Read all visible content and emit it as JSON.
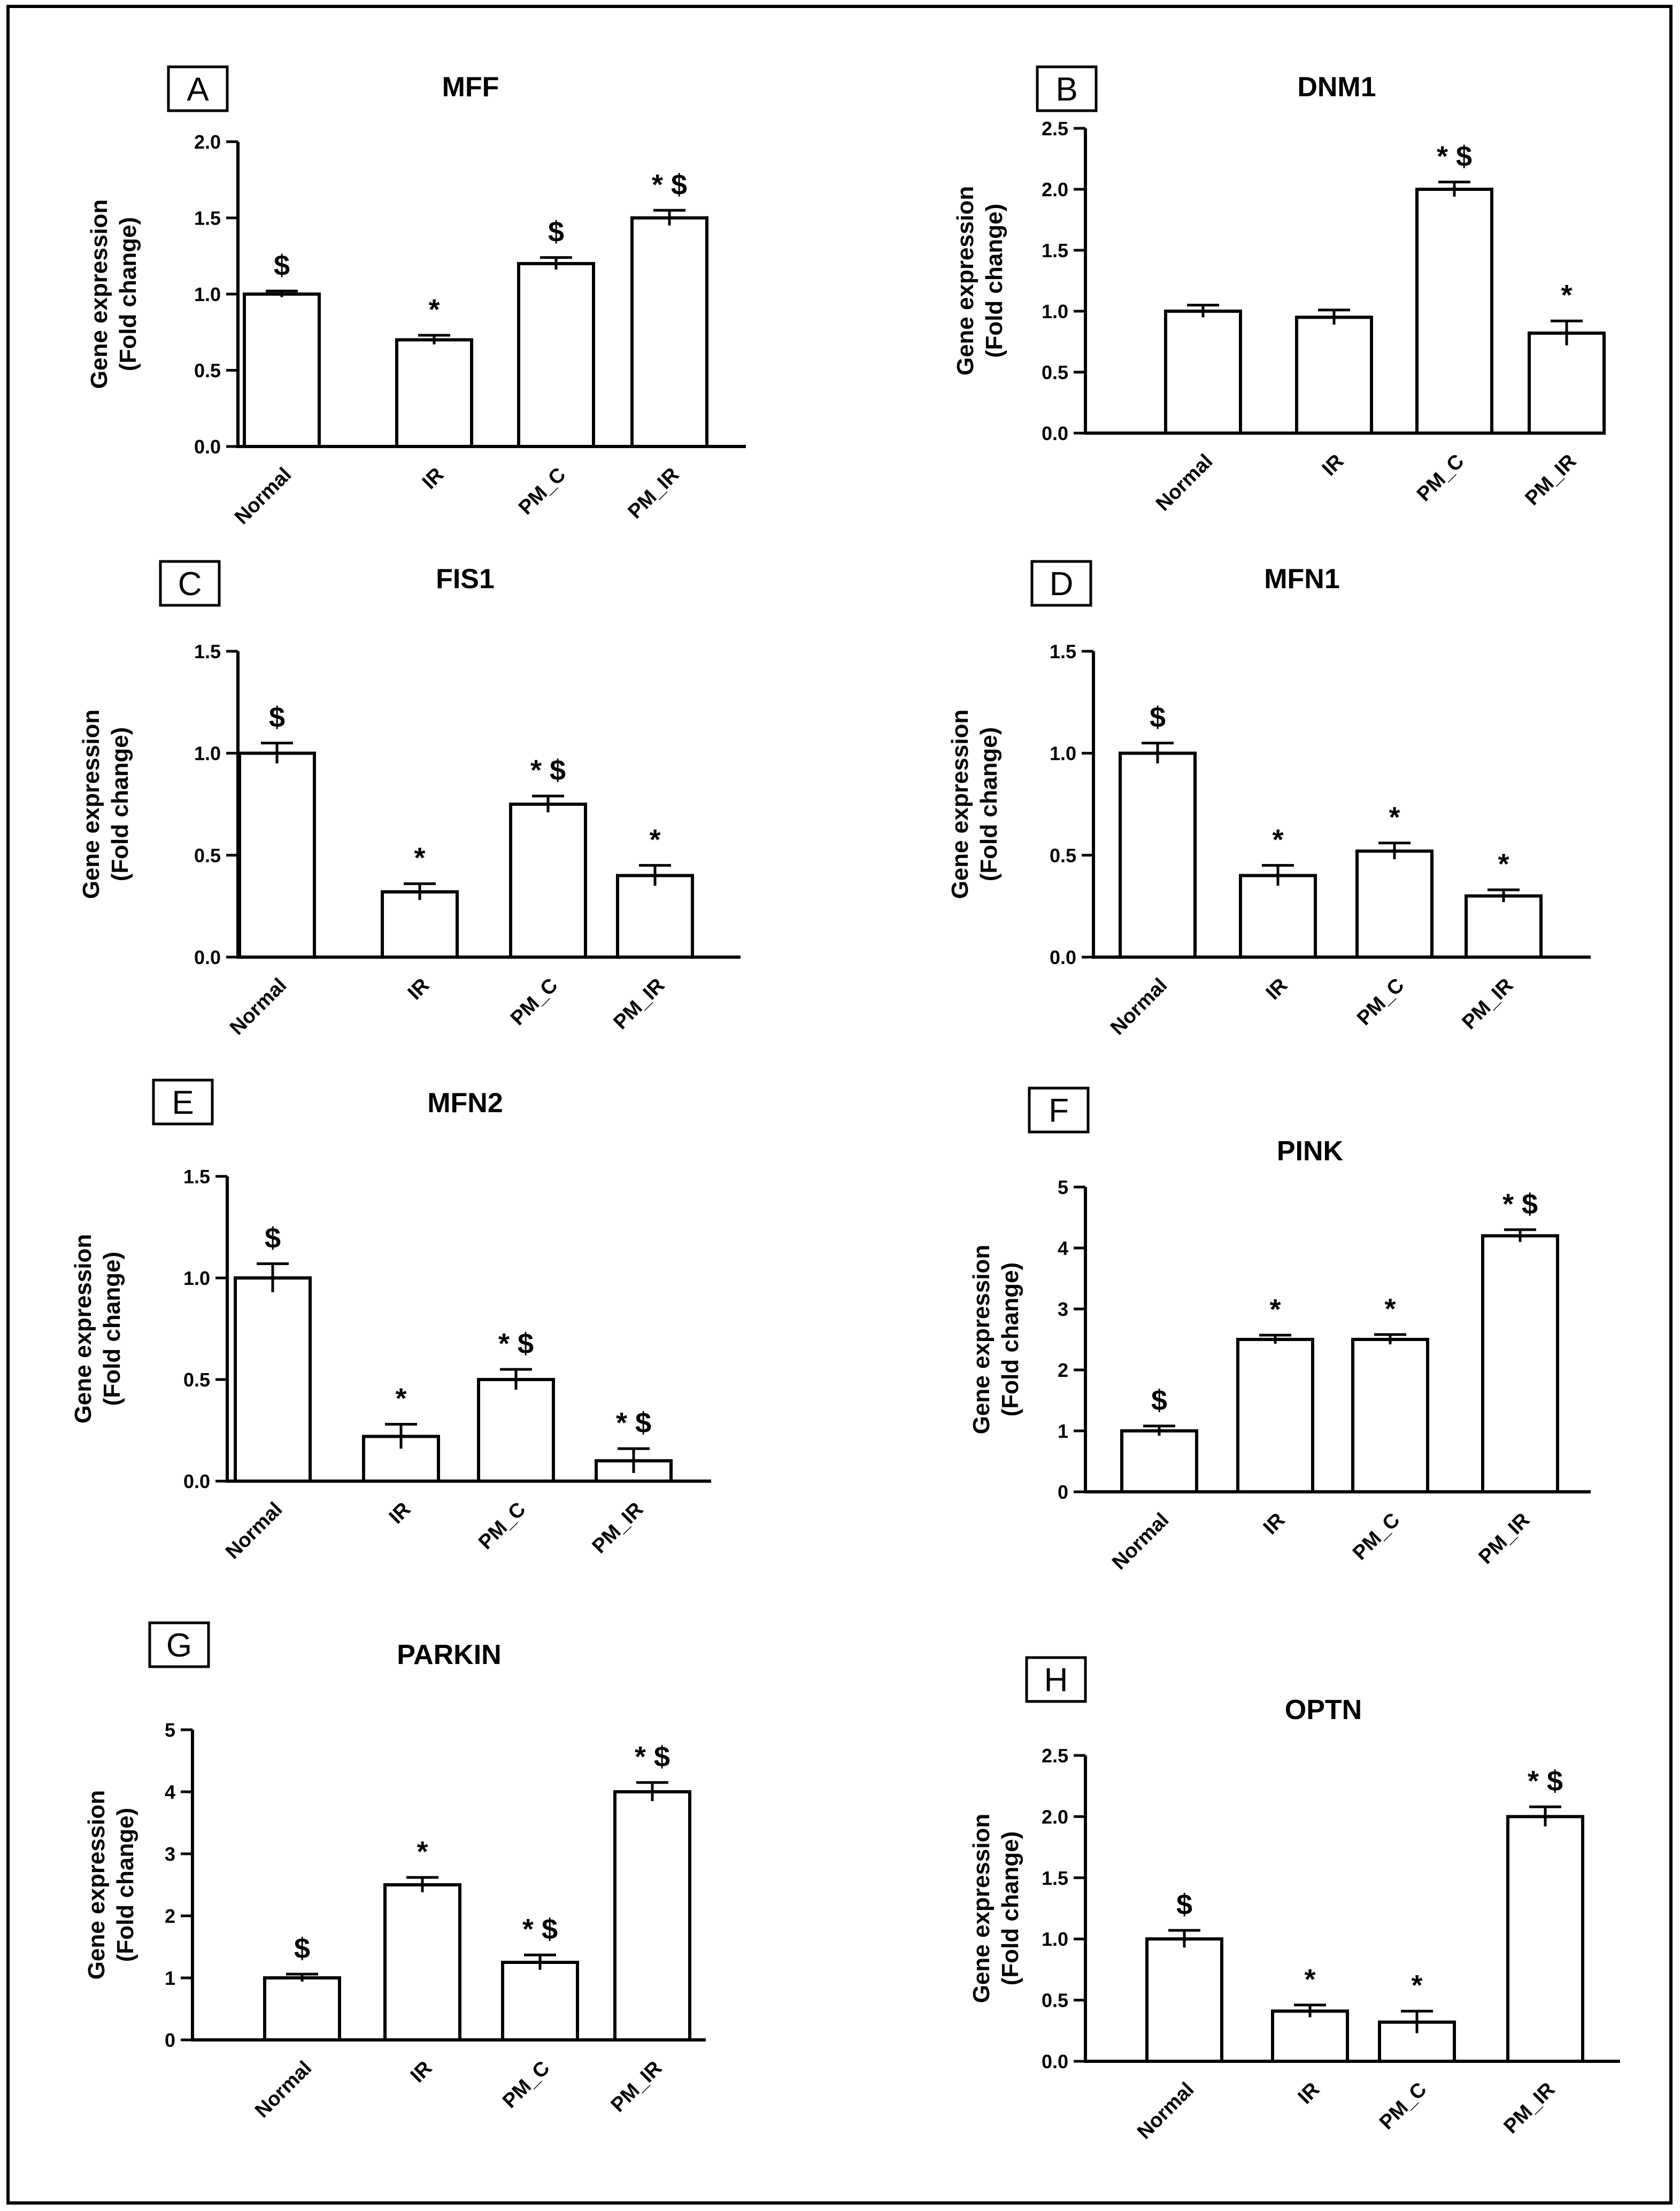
{
  "figure": {
    "ylabel_line1": "Gene expression",
    "ylabel_line2": "(Fold change)"
  },
  "chart_data": [
    {
      "panel": "A",
      "type": "bar",
      "title": "MFF",
      "categories": [
        "Normal",
        "IR",
        "PM_C",
        "PM_IR"
      ],
      "values": [
        1.0,
        0.7,
        1.2,
        1.5
      ],
      "errors": [
        0.02,
        0.03,
        0.04,
        0.05
      ],
      "annotations": [
        "$",
        "*",
        "$",
        "*$"
      ],
      "ylim": [
        0,
        2.0
      ],
      "yticks": [
        "0.0",
        "0.5",
        "1.0",
        "1.5",
        "2.0"
      ],
      "ylabel": "Gene expression (Fold change)",
      "xlabel": ""
    },
    {
      "panel": "B",
      "type": "bar",
      "title": "DNM1",
      "categories": [
        "Normal",
        "IR",
        "PM_C",
        "PM_IR"
      ],
      "values": [
        1.0,
        0.95,
        2.0,
        0.82
      ],
      "errors": [
        0.05,
        0.06,
        0.06,
        0.1
      ],
      "annotations": [
        "",
        "",
        "*$",
        "*"
      ],
      "ylim": [
        0,
        2.5
      ],
      "yticks": [
        "0.0",
        "0.5",
        "1.0",
        "1.5",
        "2.0",
        "2.5"
      ],
      "ylabel": "Gene expression (Fold change)",
      "xlabel": ""
    },
    {
      "panel": "C",
      "type": "bar",
      "title": "FIS1",
      "categories": [
        "Normal",
        "IR",
        "PM_C",
        "PM_IR"
      ],
      "values": [
        1.0,
        0.32,
        0.75,
        0.4
      ],
      "errors": [
        0.05,
        0.04,
        0.04,
        0.05
      ],
      "annotations": [
        "$",
        "*",
        "*$",
        "*"
      ],
      "ylim": [
        0,
        1.5
      ],
      "yticks": [
        "0.0",
        "0.5",
        "1.0",
        "1.5"
      ],
      "ylabel": "Gene expression (Fold change)",
      "xlabel": ""
    },
    {
      "panel": "D",
      "type": "bar",
      "title": "MFN1",
      "categories": [
        "Normal",
        "IR",
        "PM_C",
        "PM_IR"
      ],
      "values": [
        1.0,
        0.4,
        0.52,
        0.3
      ],
      "errors": [
        0.05,
        0.05,
        0.04,
        0.03
      ],
      "annotations": [
        "$",
        "*",
        "*",
        "*"
      ],
      "ylim": [
        0,
        1.5
      ],
      "yticks": [
        "0.0",
        "0.5",
        "1.0",
        "1.5"
      ],
      "ylabel": "Gene expression (Fold change)",
      "xlabel": ""
    },
    {
      "panel": "E",
      "type": "bar",
      "title": "MFN2",
      "categories": [
        "Normal",
        "IR",
        "PM_C",
        "PM_IR"
      ],
      "values": [
        1.0,
        0.22,
        0.5,
        0.1
      ],
      "errors": [
        0.07,
        0.06,
        0.05,
        0.06
      ],
      "annotations": [
        "$",
        "*",
        "*$",
        "*$"
      ],
      "ylim": [
        0,
        1.5
      ],
      "yticks": [
        "0.0",
        "0.5",
        "1.0",
        "1.5"
      ],
      "ylabel": "Gene expression (Fold change)",
      "xlabel": ""
    },
    {
      "panel": "F",
      "type": "bar",
      "title": "PINK",
      "categories": [
        "Normal",
        "IR",
        "PM_C",
        "PM_IR"
      ],
      "values": [
        1.0,
        2.5,
        2.5,
        4.2
      ],
      "errors": [
        0.08,
        0.07,
        0.08,
        0.1
      ],
      "annotations": [
        "$",
        "*",
        "*",
        "*$"
      ],
      "ylim": [
        0,
        5
      ],
      "yticks": [
        "0",
        "1",
        "2",
        "3",
        "4",
        "5"
      ],
      "ylabel": "Gene expression (Fold change)",
      "xlabel": ""
    },
    {
      "panel": "G",
      "type": "bar",
      "title": "PARKIN",
      "categories": [
        "Normal",
        "IR",
        "PM_C",
        "PM_IR"
      ],
      "values": [
        1.0,
        2.5,
        1.25,
        4.0
      ],
      "errors": [
        0.06,
        0.12,
        0.12,
        0.15
      ],
      "annotations": [
        "$",
        "*",
        "*$",
        "*$"
      ],
      "ylim": [
        0,
        5
      ],
      "yticks": [
        "0",
        "1",
        "2",
        "3",
        "4",
        "5"
      ],
      "ylabel": "Gene expression (Fold change)",
      "xlabel": ""
    },
    {
      "panel": "H",
      "type": "bar",
      "title": "OPTN",
      "categories": [
        "Normal",
        "IR",
        "PM_C",
        "PM_IR"
      ],
      "values": [
        1.0,
        0.41,
        0.32,
        2.0
      ],
      "errors": [
        0.07,
        0.05,
        0.09,
        0.08
      ],
      "annotations": [
        "$",
        "*",
        "*",
        "*$"
      ],
      "ylim": [
        0,
        2.5
      ],
      "yticks": [
        "0.0",
        "0.5",
        "1.0",
        "1.5",
        "2.0",
        "2.5"
      ],
      "ylabel": "Gene expression (Fold change)",
      "xlabel": ""
    }
  ]
}
